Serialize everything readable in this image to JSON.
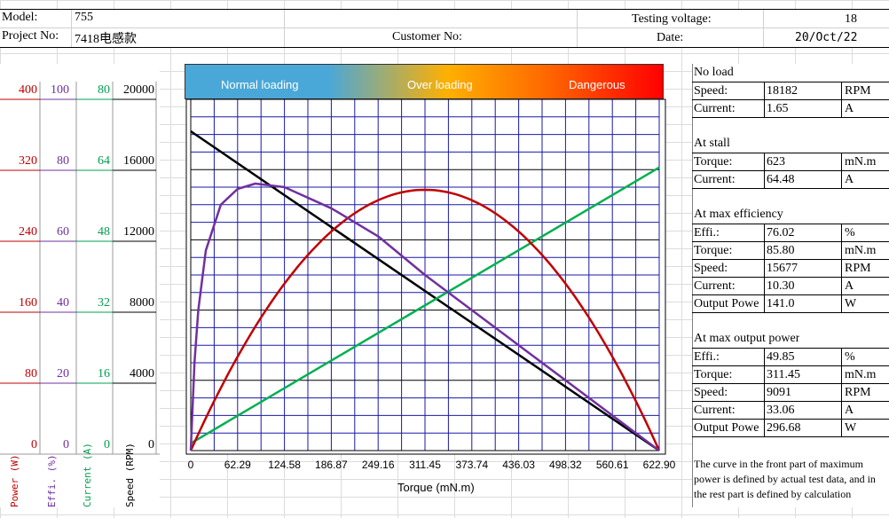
{
  "header": {
    "model_label": "Model:",
    "model_value": "755",
    "project_label": "Project No:",
    "project_value": "7418电感款",
    "customer_label": "Customer No:",
    "voltage_label": "Testing voltage:",
    "voltage_value": "18",
    "date_label": "Date:",
    "date_value": "20/Oct/22"
  },
  "band": {
    "normal": "Normal loading",
    "over": "Over loading",
    "danger": "Dangerous"
  },
  "right_panel": {
    "no_load": {
      "title": "No load",
      "rows": [
        [
          "Speed:",
          "18182",
          "RPM"
        ],
        [
          "Current:",
          "1.65",
          "A"
        ]
      ]
    },
    "stall": {
      "title": "At stall",
      "rows": [
        [
          "Torque:",
          "623",
          "mN.m"
        ],
        [
          "Current:",
          "64.48",
          "A"
        ]
      ]
    },
    "max_eff": {
      "title": "At max efficiency",
      "rows": [
        [
          "Effi.:",
          "76.02",
          "%"
        ],
        [
          "Torque:",
          "85.80",
          "mN.m"
        ],
        [
          "Speed:",
          "15677",
          "RPM"
        ],
        [
          "Current:",
          "10.30",
          "A"
        ],
        [
          "Output Powe",
          "141.0",
          "W"
        ]
      ]
    },
    "max_power": {
      "title": "At max output power",
      "rows": [
        [
          "Effi.:",
          "49.85",
          "%"
        ],
        [
          "Torque:",
          "311.45",
          "mN.m"
        ],
        [
          "Speed:",
          "9091",
          "RPM"
        ],
        [
          "Current:",
          "33.06",
          "A"
        ],
        [
          "Output Powe",
          "296.68",
          "W"
        ]
      ]
    },
    "note": "The curve in the front part of maximum power is defined by actual test data, and in the rest part is defined by calculation"
  },
  "left_axes": {
    "power": {
      "label": "Power (W)",
      "ticks": [
        "400",
        "320",
        "240",
        "160",
        "80",
        "0"
      ],
      "color": "#c00000"
    },
    "effi": {
      "label": "Effi. (%)",
      "ticks": [
        "100",
        "80",
        "60",
        "40",
        "20",
        "0"
      ],
      "color": "#7030a0"
    },
    "current": {
      "label": "Current (A)",
      "ticks": [
        "80",
        "64",
        "48",
        "32",
        "16",
        "0"
      ],
      "color": "#00a050"
    },
    "speed": {
      "label": "Speed (RPM)",
      "ticks": [
        "20000",
        "16000",
        "12000",
        "8000",
        "4000",
        "0"
      ],
      "color": "#000000"
    }
  },
  "chart_data": {
    "type": "line",
    "xlabel": "Torque (mN.m)",
    "x_ticks": [
      "0",
      "62.29",
      "124.58",
      "186.87",
      "249.16",
      "311.45",
      "373.74",
      "436.03",
      "498.32",
      "560.61",
      "622.90"
    ],
    "xlim": [
      0,
      622.9
    ],
    "grid": true,
    "series": [
      {
        "name": "Speed",
        "axis": "Speed (RPM)",
        "ylim": [
          0,
          20000
        ],
        "color": "#000000",
        "x": [
          0,
          622.9
        ],
        "y": [
          18182,
          0
        ]
      },
      {
        "name": "Current",
        "axis": "Current (A)",
        "ylim": [
          0,
          80
        ],
        "color": "#00b050",
        "x": [
          0,
          622.9
        ],
        "y": [
          1.65,
          64.48
        ]
      },
      {
        "name": "Power",
        "axis": "Power (W)",
        "ylim": [
          0,
          400
        ],
        "color": "#c00000",
        "x": [
          0,
          62.29,
          124.58,
          186.87,
          249.16,
          311.45,
          373.74,
          436.03,
          498.32,
          560.61,
          622.9
        ],
        "y": [
          0,
          107,
          190,
          249,
          285,
          297,
          285,
          249,
          190,
          107,
          0
        ]
      },
      {
        "name": "Efficiency",
        "axis": "Effi. (%)",
        "ylim": [
          0,
          100
        ],
        "color": "#7030a0",
        "x": [
          0,
          5,
          10,
          20,
          40,
          62.29,
          85.8,
          124.58,
          186.87,
          249.16,
          311.45,
          373.74,
          436.03,
          498.32,
          560.61,
          622.9
        ],
        "y": [
          0,
          25,
          40,
          57,
          70,
          74.5,
          76.02,
          75,
          69,
          61,
          50,
          40,
          30,
          20,
          10,
          0
        ]
      }
    ]
  }
}
